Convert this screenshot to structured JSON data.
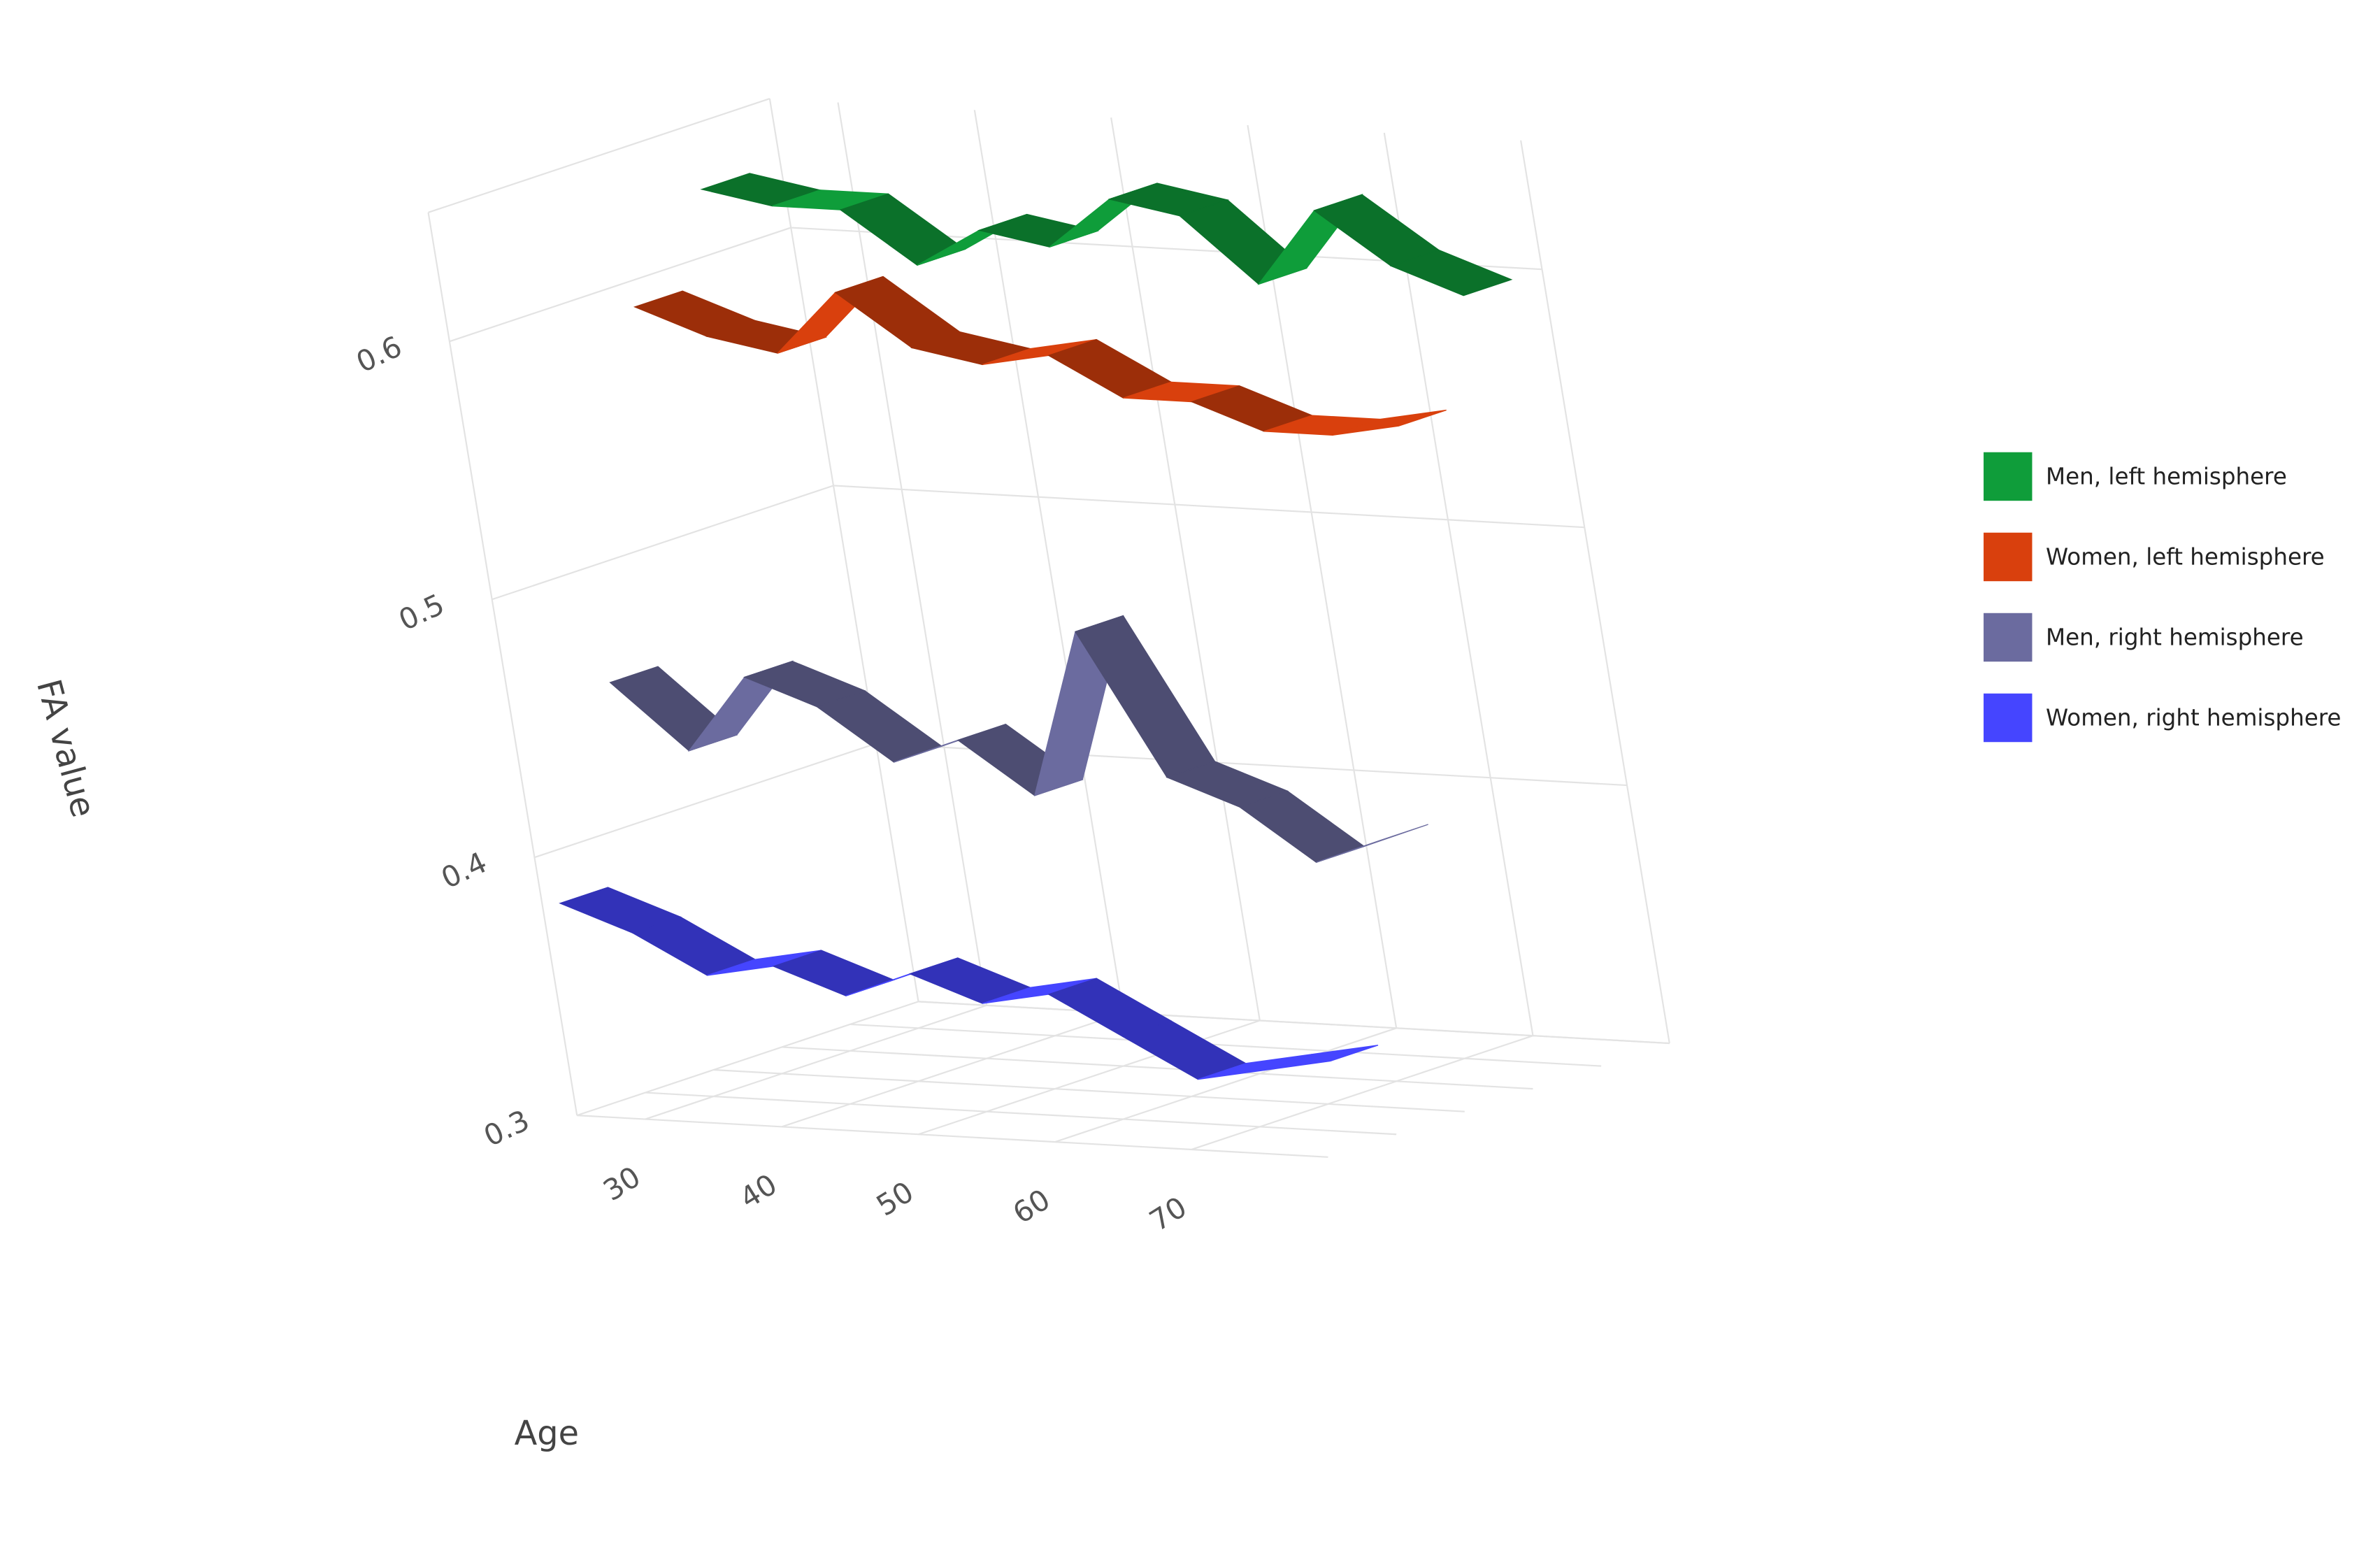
{
  "chart_data": {
    "type": "ribbon3d",
    "x_title": "Age",
    "y_title": "FA value",
    "x": [
      25,
      30,
      35,
      40,
      45,
      50,
      55,
      60,
      65,
      70,
      75,
      80
    ],
    "xlim": [
      25,
      80
    ],
    "xticks": [
      30,
      40,
      50,
      60,
      70
    ],
    "ylim": [
      0.3,
      0.65
    ],
    "yticks": [
      0.3,
      0.4,
      0.5,
      0.6
    ],
    "grid": true,
    "legend": "right",
    "series": [
      {
        "name": "Men, left hemisphere",
        "color": "#0f9d3a",
        "values": [
          0.625,
          0.62,
          0.62,
          0.6,
          0.615,
          0.61,
          0.63,
          0.625,
          0.6,
          0.63,
          0.61,
          0.6
        ]
      },
      {
        "name": "Women, left hemisphere",
        "color": "#d9400d",
        "values": [
          0.59,
          0.58,
          0.575,
          0.6,
          0.58,
          0.575,
          0.58,
          0.565,
          0.565,
          0.555,
          0.555,
          0.56
        ]
      },
      {
        "name": "Men, right hemisphere",
        "color": "#6b6b9f",
        "values": [
          0.455,
          0.43,
          0.46,
          0.45,
          0.43,
          0.44,
          0.42,
          0.485,
          0.43,
          0.42,
          0.4,
          0.41
        ]
      },
      {
        "name": "Women, right hemisphere",
        "color": "#4545ff",
        "values": [
          0.38,
          0.37,
          0.355,
          0.36,
          0.35,
          0.36,
          0.35,
          0.355,
          0.34,
          0.325,
          0.33,
          0.335
        ]
      }
    ]
  }
}
